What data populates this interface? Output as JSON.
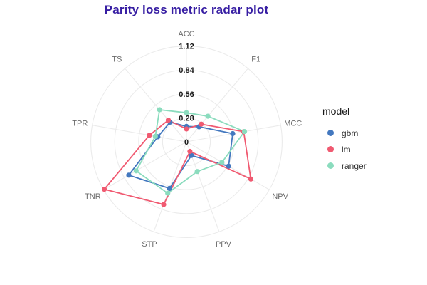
{
  "header": {
    "title": "Parity loss metric radar plot"
  },
  "legend": {
    "title": "model",
    "items": [
      {
        "label": "gbm",
        "color": "#4378bf"
      },
      {
        "label": "lm",
        "color": "#f05a71"
      },
      {
        "label": "ranger",
        "color": "#8bdcbe"
      }
    ]
  },
  "chart_data": {
    "type": "radar",
    "title": "Parity loss metric radar plot",
    "axes": [
      "ACC",
      "F1",
      "MCC",
      "NPV",
      "PPV",
      "STP",
      "TNR",
      "TPR",
      "TS"
    ],
    "ticks": [
      0,
      0.28,
      0.56,
      0.84,
      1.12
    ],
    "rlim": [
      0,
      1.12
    ],
    "grid": true,
    "legend_title": "model",
    "legend_position": "right",
    "series": [
      {
        "name": "gbm",
        "color": "#4378bf",
        "values": [
          0.18,
          0.23,
          0.55,
          0.57,
          0.17,
          0.58,
          0.78,
          0.34,
          0.3
        ]
      },
      {
        "name": "lm",
        "color": "#f05a71",
        "values": [
          0.15,
          0.27,
          0.68,
          0.87,
          0.12,
          0.78,
          1.11,
          0.44,
          0.33
        ]
      },
      {
        "name": "ranger",
        "color": "#8bdcbe",
        "values": [
          0.34,
          0.39,
          0.69,
          0.48,
          0.37,
          0.64,
          0.68,
          0.37,
          0.49
        ]
      }
    ],
    "colors": {
      "title": "#371ea3",
      "axis_label": "#6b6b6b",
      "tick_label": "#1a1a1a",
      "grid": "#ebebeb"
    }
  }
}
